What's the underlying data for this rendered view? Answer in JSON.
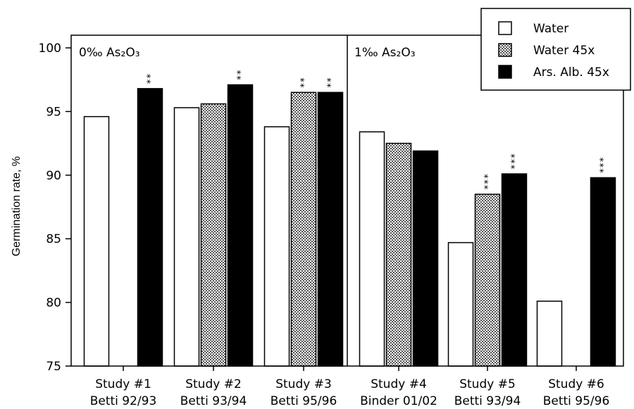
{
  "chart_data": {
    "type": "bar",
    "ylabel": "Germination rate, %",
    "ylim": [
      75,
      100
    ],
    "yticks": [
      "75",
      "80",
      "85",
      "90",
      "95",
      "100"
    ],
    "grid": false,
    "legend_position": "top-right",
    "panels": [
      {
        "label": "0‰ As₂O₃",
        "categories": [
          {
            "line1": "Study #1",
            "line2": "Betti 92/93"
          },
          {
            "line1": "Study #2",
            "line2": "Betti 93/94"
          },
          {
            "line1": "Study #3",
            "line2": "Betti 95/96"
          }
        ]
      },
      {
        "label": "1‰ As₂O₃",
        "categories": [
          {
            "line1": "Study #4",
            "line2": "Binder 01/02"
          },
          {
            "line1": "Study #5",
            "line2": "Betti 93/94"
          },
          {
            "line1": "Study #6",
            "line2": "Betti 95/96"
          }
        ]
      }
    ],
    "series": [
      {
        "name": "Water",
        "fill": "white",
        "values": [
          94.6,
          95.3,
          93.8,
          93.4,
          84.7,
          80.1
        ],
        "significance": [
          "",
          "",
          "",
          "",
          "",
          ""
        ]
      },
      {
        "name": "Water 45x",
        "fill": "checker",
        "values": [
          null,
          95.6,
          96.5,
          92.5,
          88.5,
          null
        ],
        "significance": [
          "",
          "",
          "**",
          "",
          "***",
          ""
        ]
      },
      {
        "name": "Ars. Alb. 45x",
        "fill": "black",
        "values": [
          96.8,
          97.1,
          96.5,
          91.9,
          90.1,
          89.8
        ],
        "significance": [
          "**",
          "**",
          "**",
          "",
          "***",
          "***"
        ]
      }
    ],
    "colors": {
      "ink": "#000000",
      "paper": "#ffffff",
      "checker_dark": "#555555"
    }
  }
}
